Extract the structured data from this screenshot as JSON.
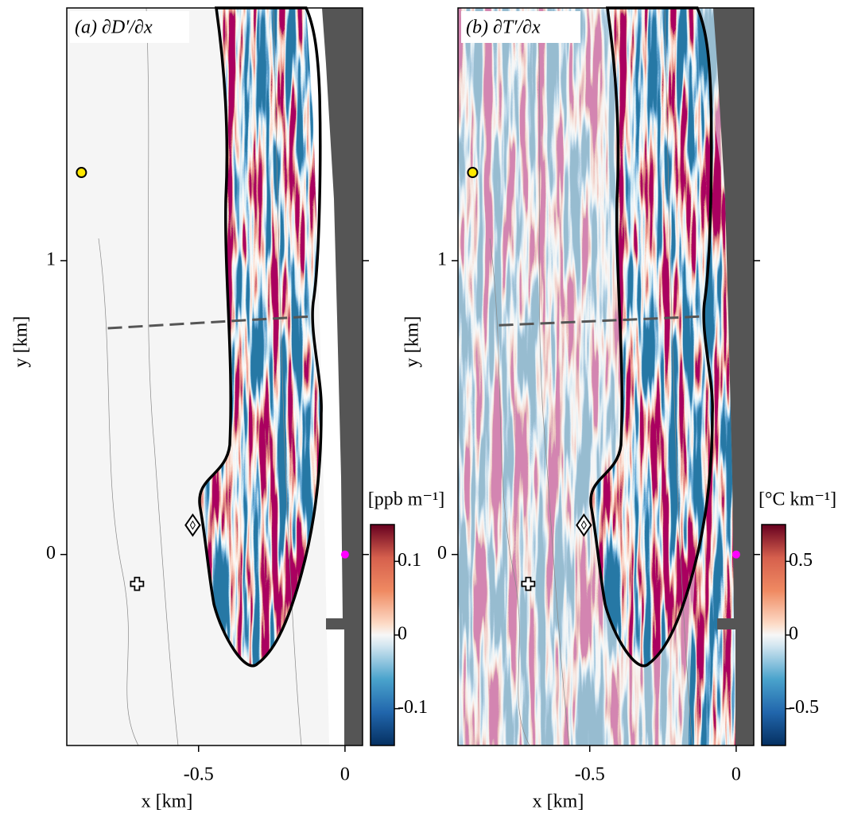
{
  "chart_data": [
    {
      "type": "heatmap",
      "title": "(a) ∂D′/∂x",
      "x_label": "x [km]",
      "y_label": "y [km]",
      "xlim": [
        -0.95,
        0.06
      ],
      "ylim": [
        -0.65,
        1.86
      ],
      "xticks": [
        -0.5,
        0
      ],
      "yticks": [
        0,
        1
      ],
      "colorbar": {
        "label": "[ppb m⁻¹]",
        "clim": [
          -0.15,
          0.15
        ],
        "ticks": [
          -0.1,
          0,
          0.1
        ]
      },
      "transect": {
        "x": [
          -0.81,
          -0.12
        ],
        "y": [
          0.77,
          0.81
        ]
      },
      "markers": [
        {
          "x": -0.9,
          "y": 1.3,
          "shape": "circle",
          "color": "#ffe800"
        },
        {
          "x": -0.71,
          "y": -0.1,
          "shape": "cross",
          "color": "#ffffff"
        },
        {
          "x": -0.52,
          "y": 0.1,
          "shape": "diamond",
          "color": "#ffffff"
        },
        {
          "x": 0,
          "y": 0,
          "shape": "dot",
          "color": "#ff00ff"
        }
      ]
    },
    {
      "type": "heatmap",
      "title": "(b) ∂T′/∂x",
      "x_label": "x [km]",
      "y_label": "y [km]",
      "xlim": [
        -0.95,
        0.06
      ],
      "ylim": [
        -0.65,
        1.86
      ],
      "xticks": [
        -0.5,
        0
      ],
      "yticks": [
        0,
        1
      ],
      "colorbar": {
        "label": "[°C km⁻¹]",
        "clim": [
          -0.75,
          0.75
        ],
        "ticks": [
          -0.5,
          0,
          0.5
        ]
      },
      "transect": {
        "x": [
          -0.81,
          -0.12
        ],
        "y": [
          0.78,
          0.81
        ]
      },
      "markers": [
        {
          "x": -0.9,
          "y": 1.3,
          "shape": "circle",
          "color": "#ffe800"
        },
        {
          "x": -0.71,
          "y": -0.1,
          "shape": "cross",
          "color": "#ffffff"
        },
        {
          "x": -0.52,
          "y": 0.1,
          "shape": "diamond",
          "color": "#ffffff"
        },
        {
          "x": 0,
          "y": 0,
          "shape": "dot",
          "color": "#ff00ff"
        }
      ]
    }
  ]
}
